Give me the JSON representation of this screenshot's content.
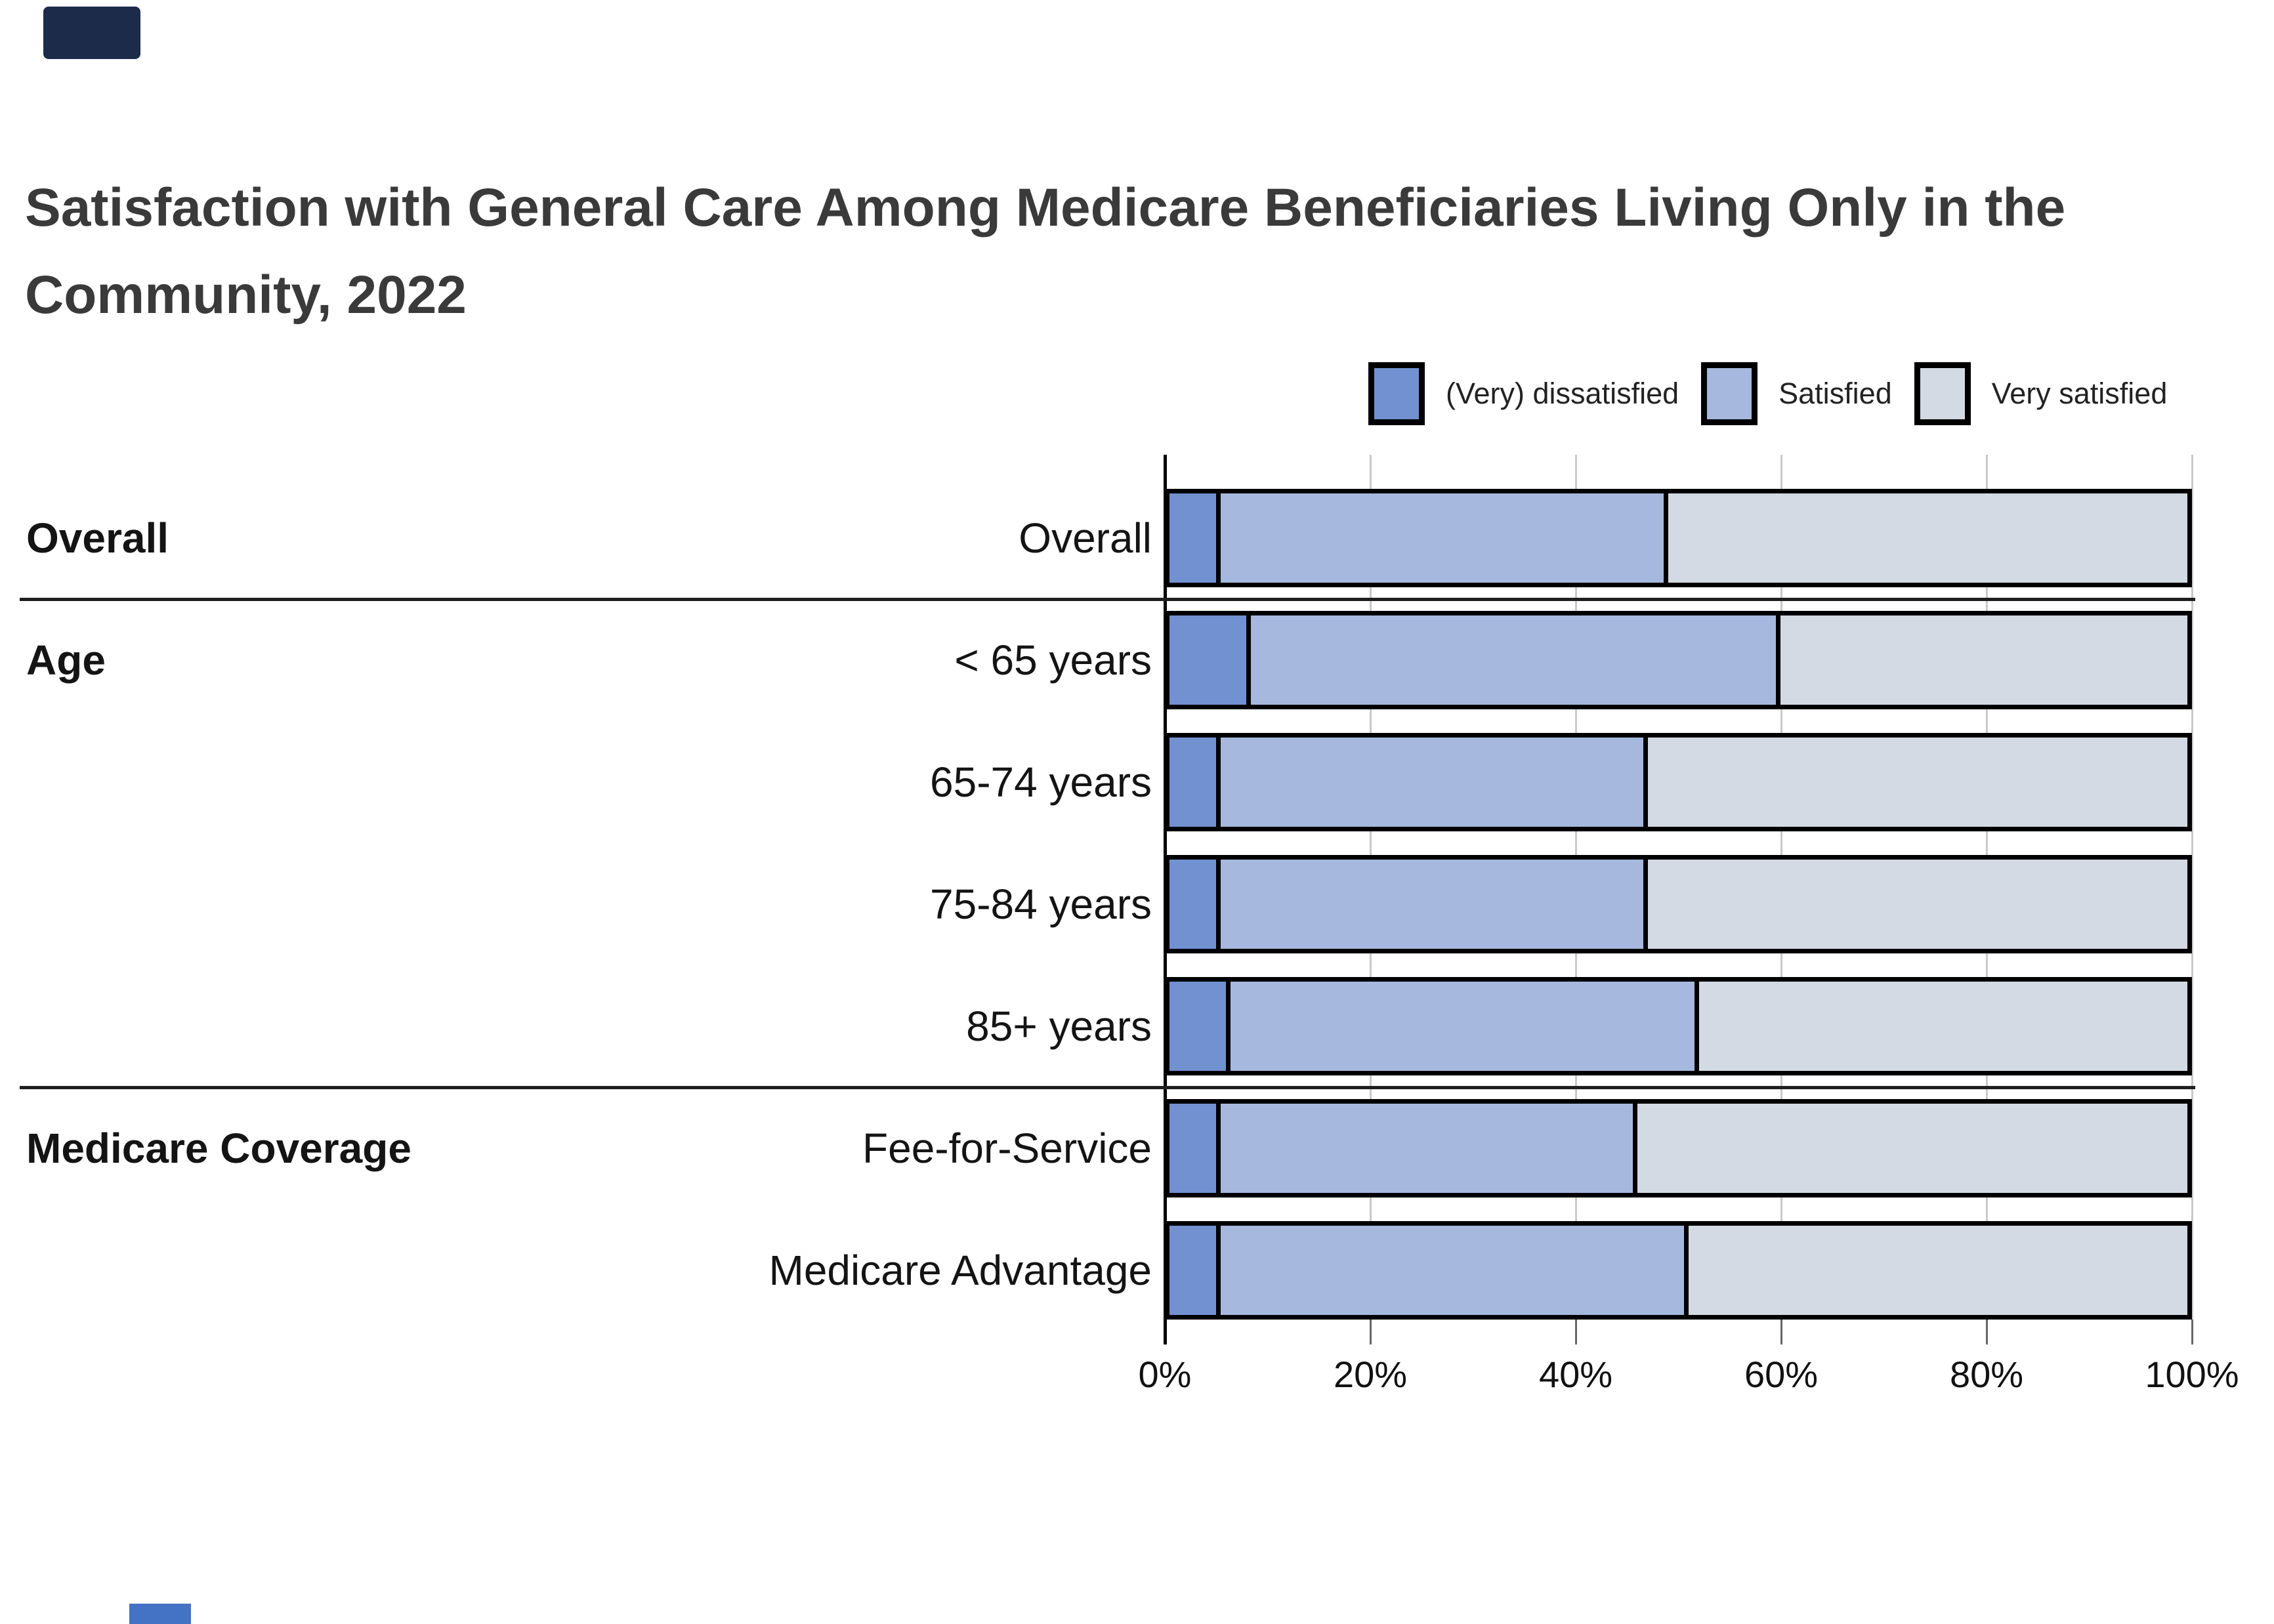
{
  "page": {
    "title": "Satisfaction with General Care Among Medicare Beneficiaries Living Only in the Community, 2022"
  },
  "legend": {
    "items": [
      {
        "label": "(Very) dissatisfied",
        "color": "#7191d0"
      },
      {
        "label": "Satisfied",
        "color": "#a6b8dd"
      },
      {
        "label": "Very satisfied",
        "color": "#d4dae4"
      }
    ]
  },
  "chart_data": {
    "type": "bar",
    "orientation": "horizontal-stacked",
    "title": "Satisfaction with General Care Among Medicare Beneficiaries Living Only in the Community, 2022",
    "categories": [
      "Overall",
      "< 65 years",
      "65-74 years",
      "75-84 years",
      "85+ years",
      "Fee-for-Service",
      "Medicare Advantage"
    ],
    "groups": [
      {
        "label": "Overall",
        "align_row": 0,
        "rows": [
          0
        ]
      },
      {
        "label": "Age",
        "align_row": 1,
        "rows": [
          1,
          2,
          3,
          4
        ]
      },
      {
        "label": "Medicare Coverage",
        "align_row": 5,
        "rows": [
          5,
          6
        ]
      }
    ],
    "series": [
      {
        "name": "(Very) dissatisfied",
        "values": [
          5,
          8,
          5,
          5,
          6,
          5,
          5
        ]
      },
      {
        "name": "Satisfied",
        "values": [
          44,
          52,
          42,
          42,
          46,
          41,
          46
        ]
      },
      {
        "name": "Very satisfied",
        "values": [
          51,
          40,
          53,
          53,
          48,
          54,
          49
        ]
      }
    ],
    "x_ticks": [
      "0%",
      "20%",
      "40%",
      "60%",
      "80%",
      "100%"
    ],
    "xlim": [
      0,
      100
    ],
    "xlabel": "",
    "ylabel": "",
    "grid": true,
    "legend_position": "top-right"
  },
  "colors": {
    "dissatisfied": "#7191d0",
    "satisfied": "#a6b8dd",
    "very_satisfied": "#d4dae4",
    "bar_border": "#000000",
    "gridline": "#c9c9c9",
    "title_text": "#3a3a3a",
    "accent_navy": "#1c2b4a",
    "accent_blue": "#4472c4"
  }
}
